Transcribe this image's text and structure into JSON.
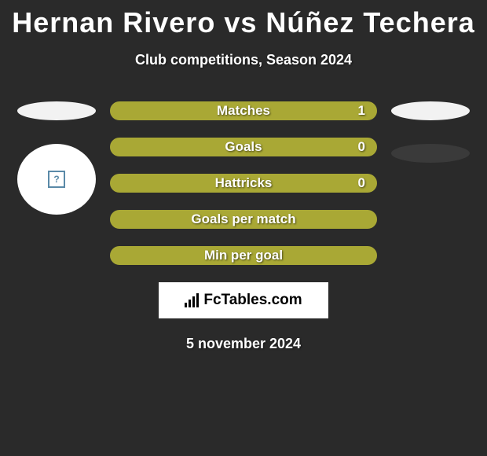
{
  "title": {
    "text": "Hernan Rivero vs Núñez Techera",
    "color": "#ffffff",
    "fontsize": 36
  },
  "subtitle": {
    "text": "Club competitions, Season 2024",
    "color": "#ffffff",
    "fontsize": 18
  },
  "stats": {
    "bar_color": "#a9a835",
    "bar_border": "#a9a835",
    "label_color": "#ffffff",
    "rows": [
      {
        "label": "Matches",
        "value": "1"
      },
      {
        "label": "Goals",
        "value": "0"
      },
      {
        "label": "Hattricks",
        "value": "0"
      },
      {
        "label": "Goals per match",
        "value": ""
      },
      {
        "label": "Min per goal",
        "value": ""
      }
    ]
  },
  "left_side": {
    "ellipse_color": "#f2f2f2",
    "avatar_bg": "#ffffff",
    "avatar_icon_color": "#5a8aa8",
    "avatar_icon_text": "?"
  },
  "right_side": {
    "ellipse1_color": "#f2f2f2",
    "ellipse2_color": "#3a3a3a"
  },
  "logo": {
    "text": "FcTables.com",
    "bg": "#ffffff",
    "text_color": "#000000"
  },
  "date": {
    "text": "5 november 2024",
    "color": "#ffffff",
    "fontsize": 18
  },
  "background_color": "#2a2a2a"
}
